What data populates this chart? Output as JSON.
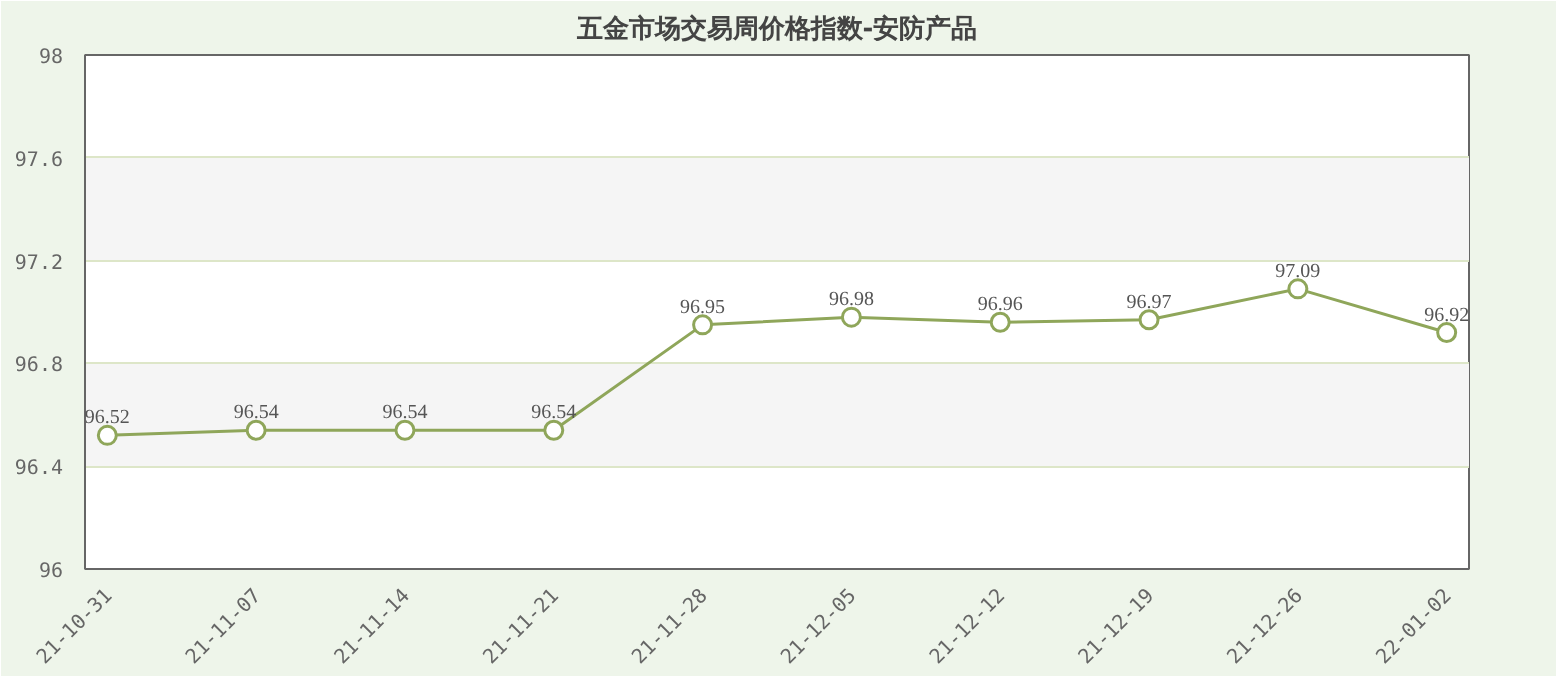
{
  "chart_data": {
    "type": "line",
    "title": "五金市场交易周价格指数-安防产品",
    "categories": [
      "21-10-31",
      "21-11-07",
      "21-11-14",
      "21-11-21",
      "21-11-28",
      "21-12-05",
      "21-12-12",
      "21-12-19",
      "21-12-26",
      "22-01-02"
    ],
    "series": [
      {
        "color": "#8fa65a",
        "values": [
          96.52,
          96.54,
          96.54,
          96.54,
          96.95,
          96.98,
          96.96,
          96.97,
          97.09,
          96.92
        ]
      }
    ],
    "ylim": [
      96,
      98
    ],
    "yticks": [
      96,
      96.4,
      96.8,
      97.2,
      97.6,
      98
    ],
    "grid": "y",
    "marker": "circle",
    "data_labels": true
  }
}
